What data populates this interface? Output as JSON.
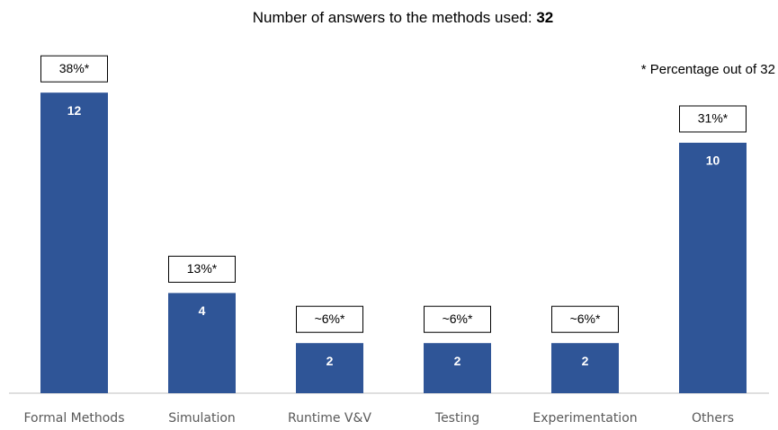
{
  "chart_data": {
    "type": "bar",
    "title": "Number of answers to the methods used:",
    "total": 32,
    "annotation": "* Percentage out of 32",
    "categories": [
      "Formal Methods",
      "Simulation",
      "Runtime V&V",
      "Testing",
      "Experimentation",
      "Others"
    ],
    "values": [
      12,
      4,
      2,
      2,
      2,
      10
    ],
    "percent_labels": [
      "38%*",
      "13%*",
      "~6%*",
      "~6%*",
      "~6%*",
      "31%*"
    ],
    "color": "#2f5597"
  }
}
